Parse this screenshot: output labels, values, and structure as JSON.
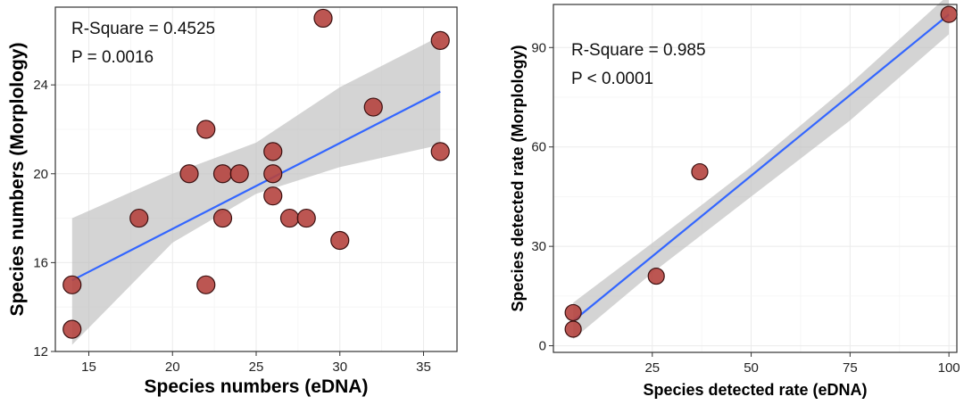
{
  "colors": {
    "point_fill": "#b5443f",
    "point_stroke": "#3a1010",
    "fit_line": "#3366ff",
    "ci_band": "#bdbdbd",
    "grid": "#ebebeb",
    "frame": "#333333"
  },
  "chart_data": [
    {
      "type": "scatter",
      "xlabel": "Species numbers (eDNA)",
      "ylabel": "Species numbers (Morplology)",
      "xlim": [
        13,
        37
      ],
      "ylim": [
        12,
        27.5
      ],
      "xticks": [
        15,
        20,
        25,
        30,
        35
      ],
      "yticks": [
        12,
        16,
        20,
        24
      ],
      "grid": true,
      "annotations": [
        "R-Square = 0.4525",
        "P = 0.0016"
      ],
      "points": [
        {
          "x": 14,
          "y": 15
        },
        {
          "x": 14,
          "y": 13
        },
        {
          "x": 18,
          "y": 18
        },
        {
          "x": 21,
          "y": 20
        },
        {
          "x": 22,
          "y": 22
        },
        {
          "x": 22,
          "y": 15
        },
        {
          "x": 23,
          "y": 20
        },
        {
          "x": 23,
          "y": 18
        },
        {
          "x": 24,
          "y": 20
        },
        {
          "x": 26,
          "y": 21
        },
        {
          "x": 26,
          "y": 20
        },
        {
          "x": 26,
          "y": 19
        },
        {
          "x": 27,
          "y": 18
        },
        {
          "x": 28,
          "y": 18
        },
        {
          "x": 29,
          "y": 27
        },
        {
          "x": 30,
          "y": 17
        },
        {
          "x": 32,
          "y": 23
        },
        {
          "x": 36,
          "y": 26
        },
        {
          "x": 36,
          "y": 21
        }
      ],
      "fit": {
        "x": [
          14,
          36
        ],
        "y": [
          15.2,
          23.7
        ]
      },
      "ci": {
        "x": [
          14,
          20,
          25,
          30,
          36
        ],
        "lower": [
          12.3,
          16.9,
          19.1,
          20.3,
          21.3
        ],
        "upper": [
          18.0,
          20.0,
          21.4,
          23.9,
          26.2
        ]
      }
    },
    {
      "type": "scatter",
      "xlabel": "Species detected rate (eDNA)",
      "ylabel": "Species detected rate (Morplology)",
      "xlim": [
        0,
        102
      ],
      "ylim": [
        -2,
        103
      ],
      "xticks": [
        25,
        50,
        75,
        100
      ],
      "yticks": [
        0,
        30,
        60,
        90
      ],
      "grid": true,
      "annotations": [
        "R-Square = 0.985",
        "P < 0.0001"
      ],
      "points": [
        {
          "x": 5,
          "y": 10
        },
        {
          "x": 5,
          "y": 5
        },
        {
          "x": 26,
          "y": 21
        },
        {
          "x": 37,
          "y": 52.5
        },
        {
          "x": 100,
          "y": 100
        }
      ],
      "fit": {
        "x": [
          5,
          100
        ],
        "y": [
          7.5,
          100
        ]
      },
      "ci": {
        "x": [
          5,
          25,
          50,
          75,
          100
        ],
        "lower": [
          2,
          22,
          45,
          68,
          94
        ],
        "upper": [
          13,
          31,
          54,
          79,
          106
        ]
      }
    }
  ]
}
